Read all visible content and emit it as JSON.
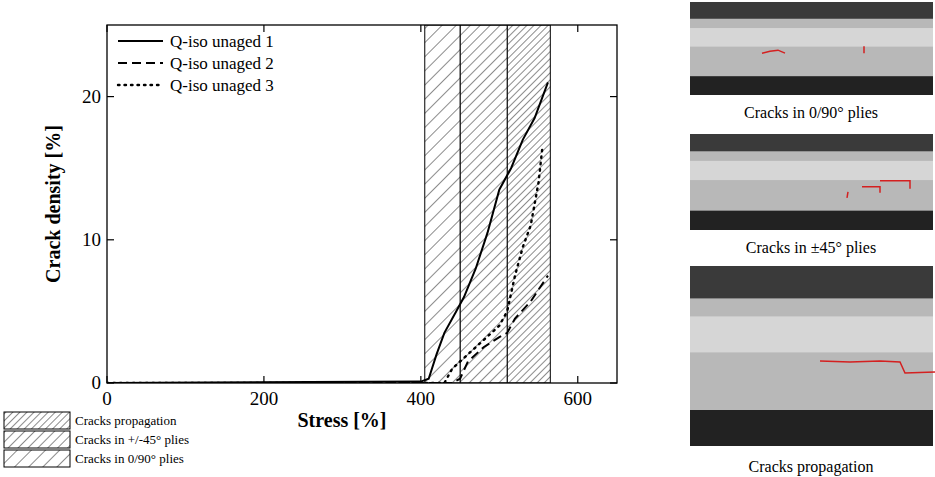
{
  "chart_data": {
    "type": "line",
    "xlabel": "Stress [%]",
    "ylabel": "Crack density [%]",
    "xlim": [
      0,
      650
    ],
    "ylim": [
      0,
      25
    ],
    "xticks": [
      0,
      200,
      400,
      600
    ],
    "yticks": [
      0,
      10,
      20
    ],
    "grid": false,
    "legend": "top-left",
    "series": [
      {
        "name": "Q-iso unaged 1",
        "color": "#000000",
        "line_style": "solid",
        "x": [
          0,
          400,
          410,
          420,
          430,
          445,
          455,
          470,
          485,
          500,
          515,
          530,
          545,
          562
        ],
        "values": [
          0,
          0.1,
          0.3,
          2,
          3.5,
          5,
          6,
          8,
          10.5,
          13.5,
          15,
          17,
          18.5,
          21
        ]
      },
      {
        "name": "Q-iso unaged 2",
        "color": "#000000",
        "line_style": "dashed",
        "x": [
          0,
          440,
          450,
          460,
          480,
          500,
          510,
          520,
          540,
          562
        ],
        "values": [
          0,
          0,
          0.3,
          1.5,
          2.5,
          3.2,
          3.5,
          4.5,
          5.7,
          7.5
        ]
      },
      {
        "name": "Q-iso unaged 3",
        "color": "#000000",
        "line_style": "dotted",
        "x": [
          0,
          430,
          440,
          460,
          480,
          500,
          510,
          520,
          530,
          540,
          550,
          555
        ],
        "values": [
          0,
          0,
          1,
          2,
          3,
          4,
          5,
          7.5,
          9.5,
          11,
          14,
          16.5
        ]
      }
    ],
    "regions": [
      {
        "label": "Cracks propagation",
        "start": 510,
        "end": 565
      },
      {
        "label": "Cracks in +/-45° plies",
        "start": 450,
        "end": 510
      },
      {
        "label": "Cracks in 0/90° plies",
        "start": 405,
        "end": 450
      }
    ]
  },
  "images": [
    {
      "caption": "Cracks in 0/90° plies"
    },
    {
      "caption": "Cracks in ±45° plies"
    },
    {
      "caption": "Cracks propagation"
    }
  ]
}
